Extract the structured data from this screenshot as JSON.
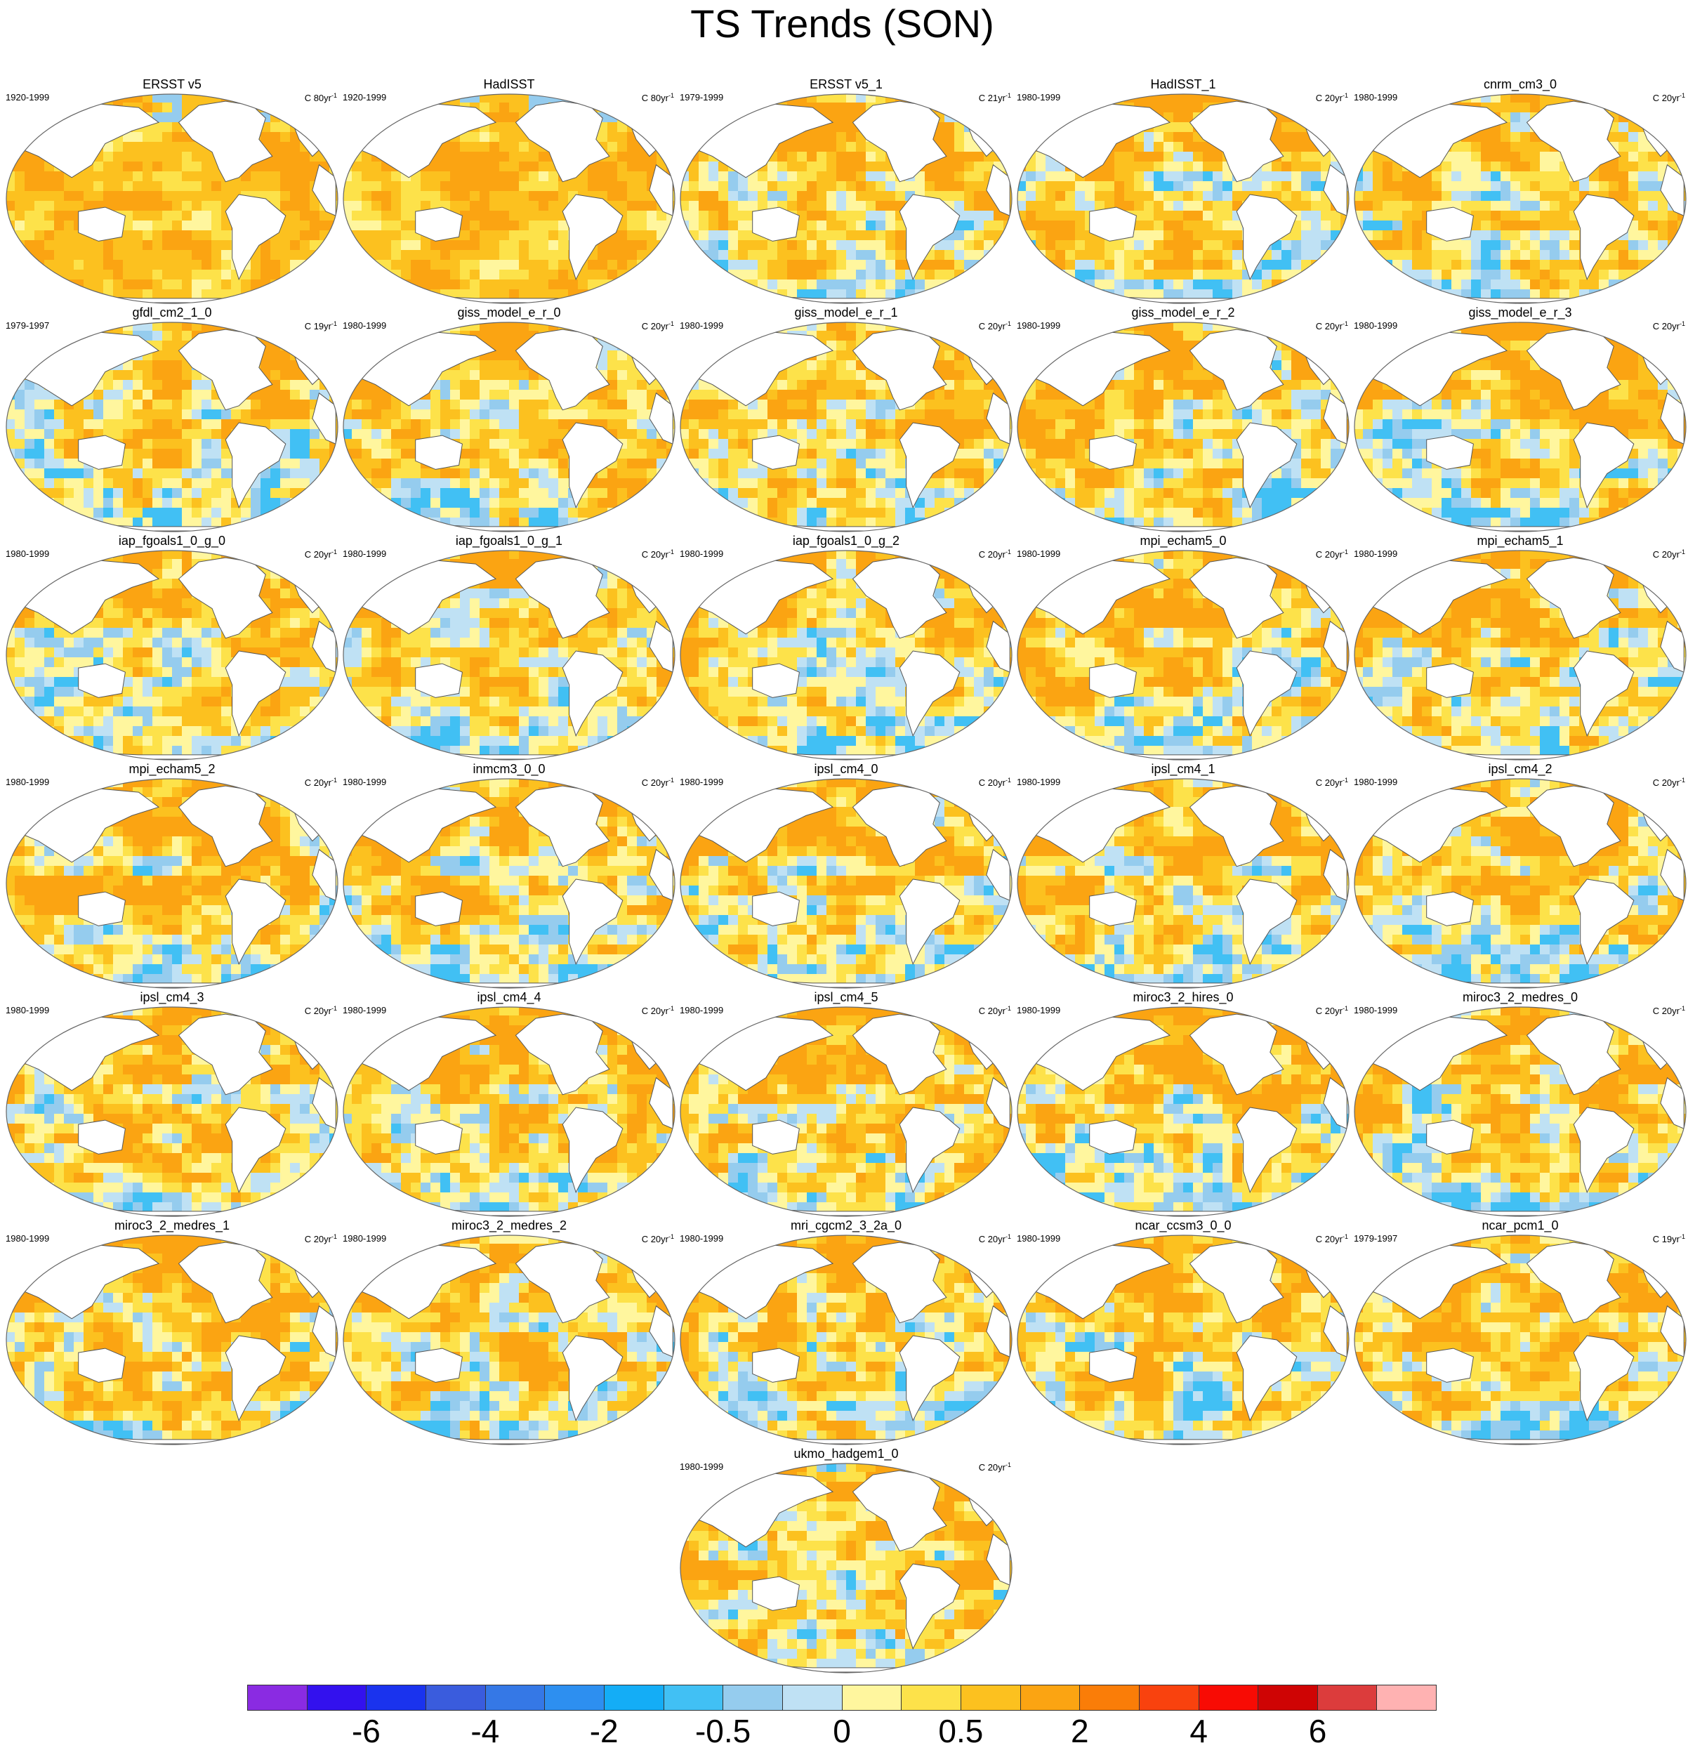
{
  "title": "TS Trends (SON)",
  "panels": [
    {
      "name": "ERSST v5",
      "period": "1920-1999",
      "trend_unit": "C 80yr",
      "trend_exp": "-1",
      "style": "warm"
    },
    {
      "name": "HadISST",
      "period": "1920-1999",
      "trend_unit": "C 80yr",
      "trend_exp": "-1",
      "style": "warm"
    },
    {
      "name": "ERSST v5_1",
      "period": "1979-1999",
      "trend_unit": "C 21yr",
      "trend_exp": "-1",
      "style": "mixed"
    },
    {
      "name": "HadISST_1",
      "period": "1980-1999",
      "trend_unit": "C 20yr",
      "trend_exp": "-1",
      "style": "mixed"
    },
    {
      "name": "cnrm_cm3_0",
      "period": "1980-1999",
      "trend_unit": "C 20yr",
      "trend_exp": "-1",
      "style": "mixed"
    },
    {
      "name": "gfdl_cm2_1_0",
      "period": "1979-1997",
      "trend_unit": "C 19yr",
      "trend_exp": "-1",
      "style": "mixed"
    },
    {
      "name": "giss_model_e_r_0",
      "period": "1980-1999",
      "trend_unit": "C 20yr",
      "trend_exp": "-1",
      "style": "mixed"
    },
    {
      "name": "giss_model_e_r_1",
      "period": "1980-1999",
      "trend_unit": "C 20yr",
      "trend_exp": "-1",
      "style": "mixed"
    },
    {
      "name": "giss_model_e_r_2",
      "period": "1980-1999",
      "trend_unit": "C 20yr",
      "trend_exp": "-1",
      "style": "mixed"
    },
    {
      "name": "giss_model_e_r_3",
      "period": "1980-1999",
      "trend_unit": "C 20yr",
      "trend_exp": "-1",
      "style": "mixed"
    },
    {
      "name": "iap_fgoals1_0_g_0",
      "period": "1980-1999",
      "trend_unit": "C 20yr",
      "trend_exp": "-1",
      "style": "mixed"
    },
    {
      "name": "iap_fgoals1_0_g_1",
      "period": "1980-1999",
      "trend_unit": "C 20yr",
      "trend_exp": "-1",
      "style": "mixed"
    },
    {
      "name": "iap_fgoals1_0_g_2",
      "period": "1980-1999",
      "trend_unit": "C 20yr",
      "trend_exp": "-1",
      "style": "mixed"
    },
    {
      "name": "mpi_echam5_0",
      "period": "1980-1999",
      "trend_unit": "C 20yr",
      "trend_exp": "-1",
      "style": "mixed"
    },
    {
      "name": "mpi_echam5_1",
      "period": "1980-1999",
      "trend_unit": "C 20yr",
      "trend_exp": "-1",
      "style": "mixed"
    },
    {
      "name": "mpi_echam5_2",
      "period": "1980-1999",
      "trend_unit": "C 20yr",
      "trend_exp": "-1",
      "style": "mixed"
    },
    {
      "name": "inmcm3_0_0",
      "period": "1980-1999",
      "trend_unit": "C 20yr",
      "trend_exp": "-1",
      "style": "mixed"
    },
    {
      "name": "ipsl_cm4_0",
      "period": "1980-1999",
      "trend_unit": "C 20yr",
      "trend_exp": "-1",
      "style": "mixed"
    },
    {
      "name": "ipsl_cm4_1",
      "period": "1980-1999",
      "trend_unit": "C 20yr",
      "trend_exp": "-1",
      "style": "mixed"
    },
    {
      "name": "ipsl_cm4_2",
      "period": "1980-1999",
      "trend_unit": "C 20yr",
      "trend_exp": "-1",
      "style": "mixed"
    },
    {
      "name": "ipsl_cm4_3",
      "period": "1980-1999",
      "trend_unit": "C 20yr",
      "trend_exp": "-1",
      "style": "mixed"
    },
    {
      "name": "ipsl_cm4_4",
      "period": "1980-1999",
      "trend_unit": "C 20yr",
      "trend_exp": "-1",
      "style": "mixed"
    },
    {
      "name": "ipsl_cm4_5",
      "period": "1980-1999",
      "trend_unit": "C 20yr",
      "trend_exp": "-1",
      "style": "mixed"
    },
    {
      "name": "miroc3_2_hires_0",
      "period": "1980-1999",
      "trend_unit": "C 20yr",
      "trend_exp": "-1",
      "style": "mixed"
    },
    {
      "name": "miroc3_2_medres_0",
      "period": "1980-1999",
      "trend_unit": "C 20yr",
      "trend_exp": "-1",
      "style": "mixed"
    },
    {
      "name": "miroc3_2_medres_1",
      "period": "1980-1999",
      "trend_unit": "C 20yr",
      "trend_exp": "-1",
      "style": "mixed"
    },
    {
      "name": "miroc3_2_medres_2",
      "period": "1980-1999",
      "trend_unit": "C 20yr",
      "trend_exp": "-1",
      "style": "mixed"
    },
    {
      "name": "mri_cgcm2_3_2a_0",
      "period": "1980-1999",
      "trend_unit": "C 20yr",
      "trend_exp": "-1",
      "style": "mixed"
    },
    {
      "name": "ncar_ccsm3_0_0",
      "period": "1980-1999",
      "trend_unit": "C 20yr",
      "trend_exp": "-1",
      "style": "mixed"
    },
    {
      "name": "ncar_pcm1_0",
      "period": "1979-1997",
      "trend_unit": "C 19yr",
      "trend_exp": "-1",
      "style": "mixed"
    },
    {
      "name": "ukmo_hadgem1_0",
      "period": "1980-1999",
      "trend_unit": "C 20yr",
      "trend_exp": "-1",
      "style": "mixed"
    }
  ],
  "colorbar": {
    "colors": [
      "#8a2be2",
      "#3311ee",
      "#1a33ee",
      "#3a5cdd",
      "#3578e6",
      "#2d8ff0",
      "#14adf6",
      "#41c0f4",
      "#95ccee",
      "#bfe1f4",
      "#fff69e",
      "#fde24a",
      "#fcc11f",
      "#fba412",
      "#fa7d08",
      "#f9420e",
      "#f80b04",
      "#cf0404",
      "#dc3c3c",
      "#ffb2b2"
    ],
    "labels": [
      {
        "text": "-6",
        "boundary": 2
      },
      {
        "text": "-4",
        "boundary": 4
      },
      {
        "text": "-2",
        "boundary": 6
      },
      {
        "text": "-0.5",
        "boundary": 8
      },
      {
        "text": "0",
        "boundary": 10
      },
      {
        "text": "0.5",
        "boundary": 12
      },
      {
        "text": "2",
        "boundary": 14
      },
      {
        "text": "4",
        "boundary": 16
      },
      {
        "text": "6",
        "boundary": 18
      }
    ]
  },
  "map_colors": {
    "ocean_pos_light": "#fff69e",
    "ocean_pos": "#fde24a",
    "ocean_pos_mid": "#fcc11f",
    "ocean_pos_strong": "#fba412",
    "ocean_neg_light": "#bfe1f4",
    "ocean_neg": "#95ccee",
    "ocean_neg_strong": "#41c0f4",
    "land": "#ffffff",
    "coast": "#555555"
  }
}
